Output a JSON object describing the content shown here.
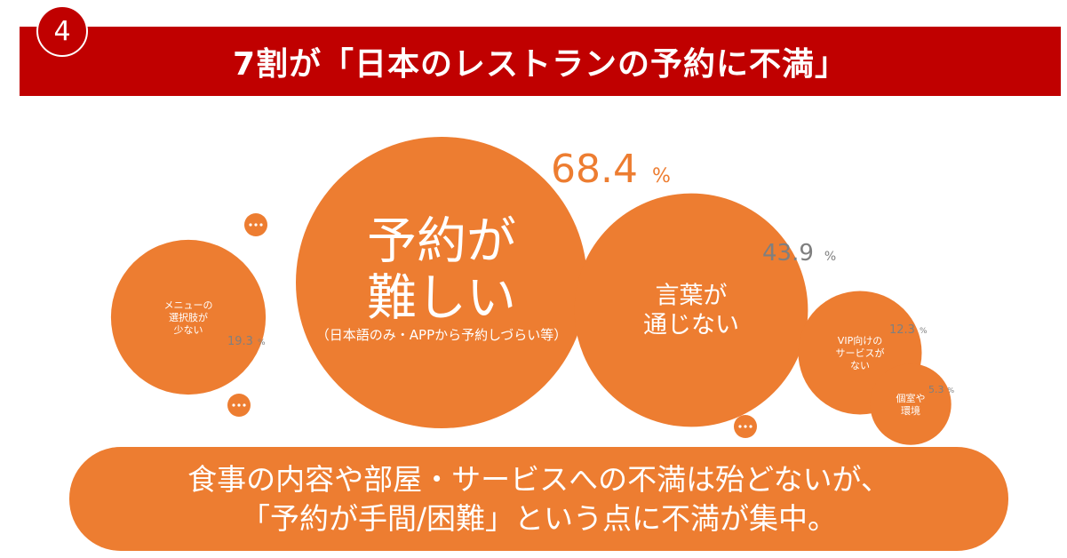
{
  "header": {
    "badge_number": "4",
    "title": "7割が「日本のレストランの予約に不満」"
  },
  "colors": {
    "banner": "#c00000",
    "bubble": "#ed7d31",
    "value_label_main": "#ed7d31",
    "value_label_secondary": "#7f7f7f"
  },
  "chart_data": {
    "type": "bubble",
    "unit": "%",
    "series": [
      {
        "lines": [
          "予約が",
          "難しい"
        ],
        "sub": "（日本語のみ・APPから予約しづらい等）",
        "value": 68.4
      },
      {
        "lines": [
          "言葉が",
          "通じない"
        ],
        "value": 43.9
      },
      {
        "lines": [
          "メニューの",
          "選択肢が",
          "少ない"
        ],
        "value": 19.3
      },
      {
        "lines": [
          "VIP向けの",
          "サービスが",
          "ない"
        ],
        "value": 12.3
      },
      {
        "lines": [
          "個室や",
          "環境"
        ],
        "value": 5.3
      }
    ],
    "more_icons": [
      "ellipsis-icon",
      "ellipsis-icon",
      "ellipsis-icon"
    ]
  },
  "summary": {
    "line1": "食事の内容や部屋・サービスへの不満は殆どないが、",
    "line2": "「予約が手間/困難」という点に不満が集中。"
  }
}
